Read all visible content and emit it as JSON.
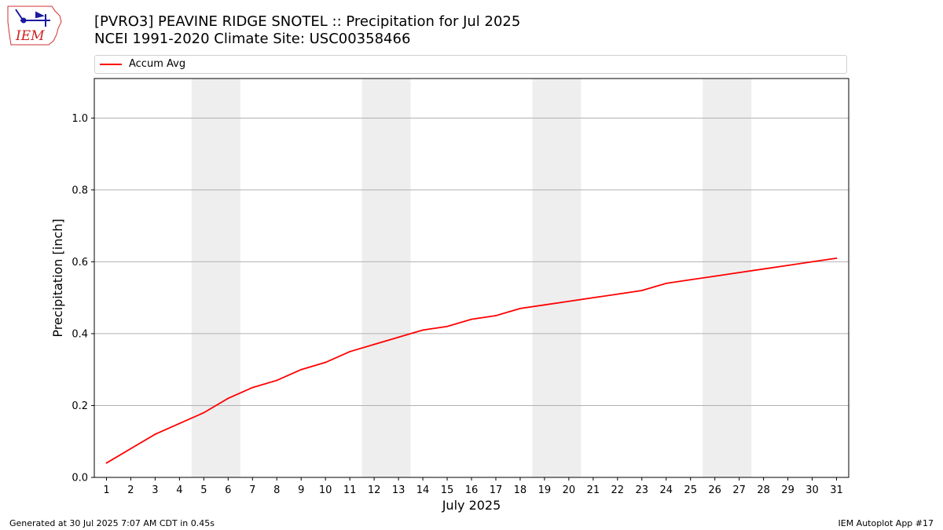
{
  "header": {
    "title_line1": "[PVRO3] PEAVINE RIDGE SNOTEL :: Precipitation for Jul 2025",
    "title_line2": "NCEI 1991-2020 Climate Site: USC00358466"
  },
  "logo": {
    "text": "IEM",
    "icon": "iem-iowa-logo"
  },
  "footer": {
    "generated": "Generated at 30 Jul 2025 7:07 AM CDT in 0.45s",
    "app": "IEM Autoplot App #17"
  },
  "chart_data": {
    "type": "line",
    "title": "[PVRO3] PEAVINE RIDGE SNOTEL :: Precipitation for Jul 2025",
    "subtitle": "NCEI 1991-2020 Climate Site: USC00358466",
    "xlabel": "July 2025",
    "ylabel": "Precipitation [inch]",
    "x": [
      1,
      2,
      3,
      4,
      5,
      6,
      7,
      8,
      9,
      10,
      11,
      12,
      13,
      14,
      15,
      16,
      17,
      18,
      19,
      20,
      21,
      22,
      23,
      24,
      25,
      26,
      27,
      28,
      29,
      30,
      31
    ],
    "xlim": [
      0.5,
      31.5
    ],
    "ylim": [
      0,
      1.11
    ],
    "yticks": [
      0.0,
      0.2,
      0.4,
      0.6,
      0.8,
      1.0
    ],
    "ytick_labels": [
      "0.0",
      "0.2",
      "0.4",
      "0.6",
      "0.8",
      "1.0"
    ],
    "xtick_labels": [
      "1",
      "2",
      "3",
      "4",
      "5",
      "6",
      "7",
      "8",
      "9",
      "10",
      "11",
      "12",
      "13",
      "14",
      "15",
      "16",
      "17",
      "18",
      "19",
      "20",
      "21",
      "22",
      "23",
      "24",
      "25",
      "26",
      "27",
      "28",
      "29",
      "30",
      "31"
    ],
    "grid": "horizontal",
    "weekend_days": [
      5,
      6,
      12,
      13,
      19,
      20,
      26,
      27
    ],
    "legend_position": "top",
    "series": [
      {
        "name": "Accum Avg",
        "color": "#ff0000",
        "values": [
          0.04,
          0.08,
          0.12,
          0.15,
          0.18,
          0.22,
          0.25,
          0.27,
          0.3,
          0.32,
          0.35,
          0.37,
          0.39,
          0.41,
          0.42,
          0.44,
          0.45,
          0.47,
          0.48,
          0.49,
          0.5,
          0.51,
          0.52,
          0.54,
          0.55,
          0.56,
          0.57,
          0.58,
          0.59,
          0.6,
          0.61
        ]
      }
    ]
  }
}
